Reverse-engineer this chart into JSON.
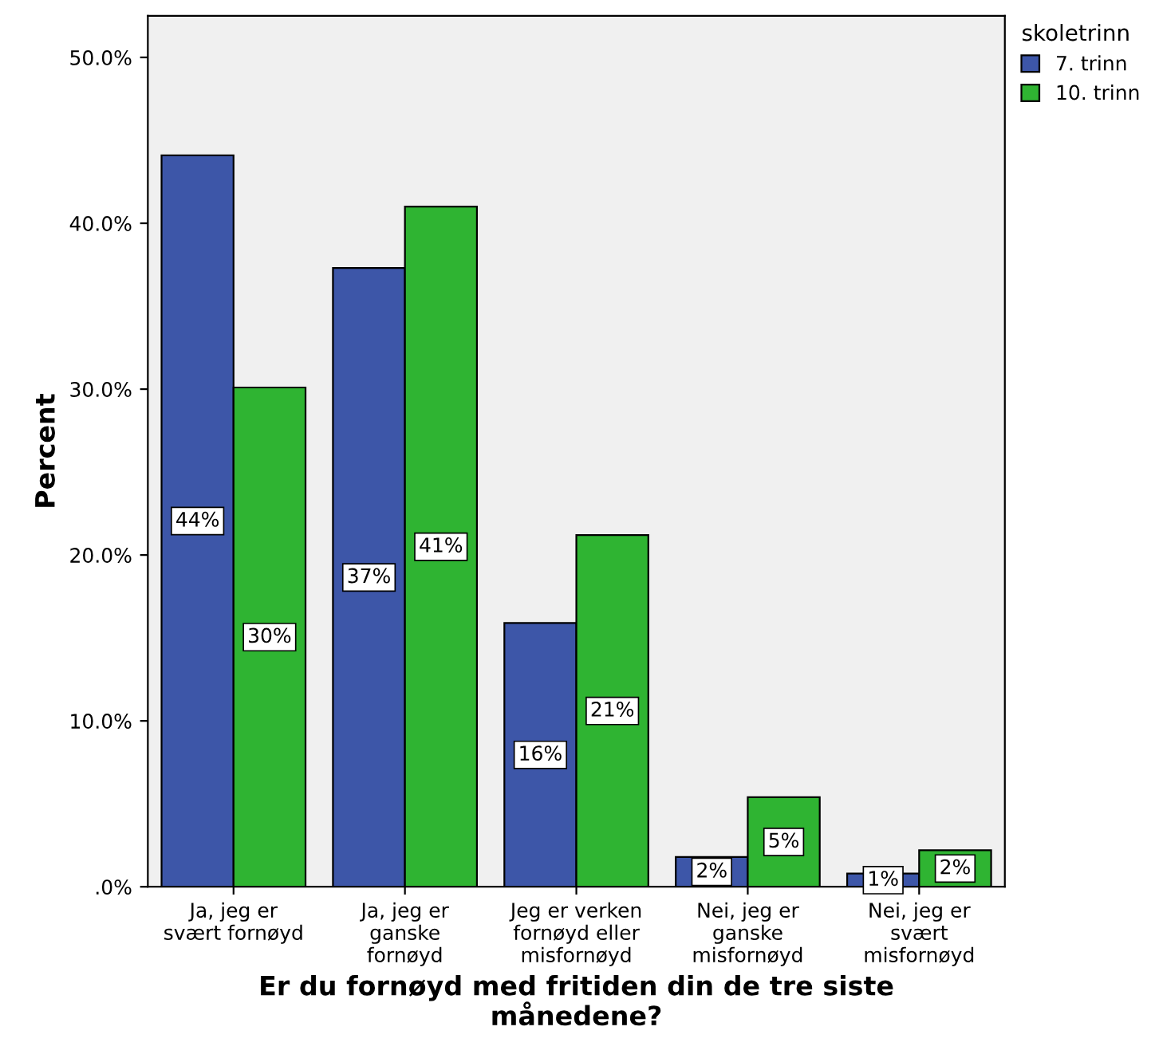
{
  "chart_data": {
    "type": "bar",
    "xlabel": "Er du fornøyd med fritiden din de tre siste\nmånedene?",
    "ylabel": "Percent",
    "legend_title": "skoletrinn",
    "categories": [
      "Ja, jeg er\nsvært fornøyd",
      "Ja, jeg er\nganske\nfornøyd",
      "Jeg er verken\nfornøyd eller\nmisfornøyd",
      "Nei, jeg er\nganske\nmisfornøyd",
      "Nei, jeg er\nsvært\nmisfornøyd"
    ],
    "series": [
      {
        "name": "7. trinn",
        "color": "#3d56a8",
        "values": [
          44.1,
          37.3,
          15.9,
          1.8,
          0.8
        ],
        "value_labels": [
          "44%",
          "37%",
          "16%",
          "2%",
          "1%"
        ]
      },
      {
        "name": "10. trinn",
        "color": "#2fb432",
        "values": [
          30.1,
          41.0,
          21.2,
          5.4,
          2.2
        ],
        "value_labels": [
          "30%",
          "41%",
          "21%",
          "5%",
          "2%"
        ]
      }
    ],
    "ylim": [
      0,
      52.5
    ],
    "yticks": [
      {
        "value": 0,
        "label": ".0%"
      },
      {
        "value": 10,
        "label": "10.0%"
      },
      {
        "value": 20,
        "label": "20.0%"
      },
      {
        "value": 30,
        "label": "30.0%"
      },
      {
        "value": 40,
        "label": "40.0%"
      },
      {
        "value": 50,
        "label": "50.0%"
      }
    ],
    "grid": false,
    "legend": "top right"
  }
}
